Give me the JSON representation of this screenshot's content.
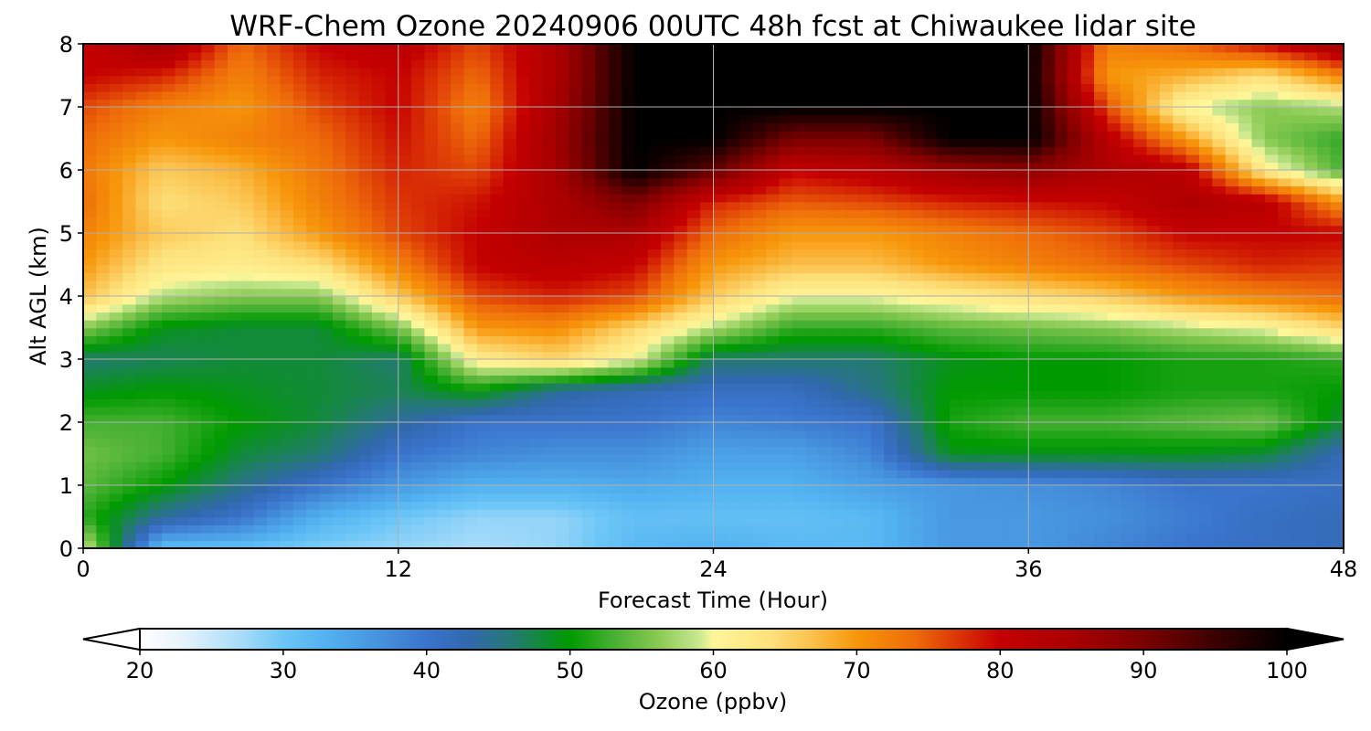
{
  "chart_data": {
    "type": "heatmap",
    "title": "WRF-Chem Ozone  20240906 00UTC 48h fcst at Chiwaukee lidar site",
    "xlabel": "Forecast Time (Hour)",
    "ylabel": "Alt AGL (km)",
    "xlim": [
      0,
      48
    ],
    "ylim": [
      0,
      8
    ],
    "xticks": [
      0,
      12,
      24,
      36,
      48
    ],
    "yticks": [
      0,
      1,
      2,
      3,
      4,
      5,
      6,
      7,
      8
    ],
    "grid": true,
    "colorbar": {
      "label": "Ozone  (ppbv)",
      "min": 20,
      "max": 100,
      "ticks": [
        20,
        30,
        40,
        50,
        60,
        70,
        80,
        90,
        100
      ],
      "extend": "both",
      "stops": [
        {
          "value": 20,
          "color": "#ffffff"
        },
        {
          "value": 23,
          "color": "#e6f3fc"
        },
        {
          "value": 27,
          "color": "#a9dcf9"
        },
        {
          "value": 30,
          "color": "#6cc6f7"
        },
        {
          "value": 33,
          "color": "#52b2f0"
        },
        {
          "value": 37,
          "color": "#4590dc"
        },
        {
          "value": 40,
          "color": "#3a74cc"
        },
        {
          "value": 43,
          "color": "#3168ad"
        },
        {
          "value": 46,
          "color": "#247a72"
        },
        {
          "value": 50,
          "color": "#009a00"
        },
        {
          "value": 53,
          "color": "#46b032"
        },
        {
          "value": 56,
          "color": "#86c850"
        },
        {
          "value": 59,
          "color": "#c8e890"
        },
        {
          "value": 60,
          "color": "#fff69a"
        },
        {
          "value": 64,
          "color": "#fde17c"
        },
        {
          "value": 67,
          "color": "#fbbf4a"
        },
        {
          "value": 70,
          "color": "#f7960a"
        },
        {
          "value": 74,
          "color": "#ee6c0a"
        },
        {
          "value": 77,
          "color": "#dc3606"
        },
        {
          "value": 80,
          "color": "#c40000"
        },
        {
          "value": 85,
          "color": "#a80000"
        },
        {
          "value": 90,
          "color": "#7c0000"
        },
        {
          "value": 95,
          "color": "#3c0000"
        },
        {
          "value": 100,
          "color": "#000000"
        }
      ]
    },
    "x": [
      0,
      3,
      6,
      9,
      12,
      15,
      18,
      21,
      24,
      27,
      30,
      33,
      36,
      39,
      42,
      45,
      48
    ],
    "y": [
      0,
      0.5,
      1,
      1.5,
      2,
      2.5,
      3,
      3.5,
      4,
      4.5,
      5,
      5.5,
      6,
      6.5,
      7,
      7.5,
      8
    ],
    "z": [
      [
        60,
        31,
        31,
        29,
        28,
        27,
        28,
        32,
        33,
        32,
        32,
        36,
        36,
        38,
        40,
        41,
        42
      ],
      [
        52,
        44,
        40,
        33,
        30,
        28,
        28,
        31,
        31,
        31,
        32,
        36,
        36,
        37,
        39,
        41,
        42
      ],
      [
        54,
        50,
        45,
        40,
        36,
        33,
        33,
        34,
        33,
        33,
        35,
        36,
        37,
        38,
        40,
        40,
        41
      ],
      [
        55,
        53,
        48,
        46,
        40,
        38,
        37,
        37,
        35,
        35,
        38,
        49,
        49,
        49,
        49,
        48,
        42
      ],
      [
        53,
        53,
        50,
        48,
        44,
        40,
        40,
        40,
        38,
        39,
        40,
        51,
        53,
        53,
        54,
        55,
        48
      ],
      [
        49,
        50,
        49,
        48,
        47,
        50,
        44,
        42,
        41,
        41,
        45,
        50,
        50,
        50,
        51,
        51,
        50
      ],
      [
        46,
        47,
        48,
        48,
        46,
        62,
        65,
        60,
        46,
        46,
        46,
        49,
        50,
        50,
        51,
        51,
        52
      ],
      [
        56,
        49,
        48,
        48,
        55,
        70,
        71,
        65,
        58,
        52,
        52,
        54,
        55,
        56,
        58,
        60,
        65
      ],
      [
        67,
        58,
        56,
        56,
        66,
        76,
        78,
        76,
        66,
        60,
        60,
        62,
        64,
        66,
        70,
        72,
        74
      ],
      [
        70,
        63,
        62,
        64,
        72,
        80,
        82,
        80,
        70,
        67,
        67,
        70,
        72,
        74,
        76,
        78,
        77
      ],
      [
        72,
        66,
        64,
        70,
        76,
        80,
        84,
        84,
        74,
        70,
        70,
        72,
        74,
        76,
        80,
        80,
        80
      ],
      [
        74,
        64,
        66,
        72,
        77,
        79,
        84,
        90,
        78,
        75,
        76,
        78,
        79,
        80,
        84,
        82,
        70
      ],
      [
        73,
        66,
        68,
        73,
        78,
        76,
        85,
        100,
        92,
        80,
        82,
        86,
        88,
        84,
        82,
        62,
        53
      ],
      [
        74,
        70,
        72,
        74,
        79,
        74,
        86,
        100,
        100,
        90,
        90,
        100,
        100,
        82,
        70,
        56,
        52
      ],
      [
        76,
        72,
        70,
        76,
        80,
        72,
        85,
        100,
        100,
        100,
        100,
        100,
        100,
        76,
        60,
        56,
        58
      ],
      [
        80,
        78,
        72,
        78,
        80,
        74,
        84,
        100,
        100,
        100,
        100,
        100,
        100,
        70,
        68,
        64,
        72
      ],
      [
        80,
        86,
        74,
        80,
        82,
        76,
        84,
        100,
        100,
        100,
        100,
        100,
        100,
        72,
        74,
        80,
        86
      ]
    ]
  }
}
